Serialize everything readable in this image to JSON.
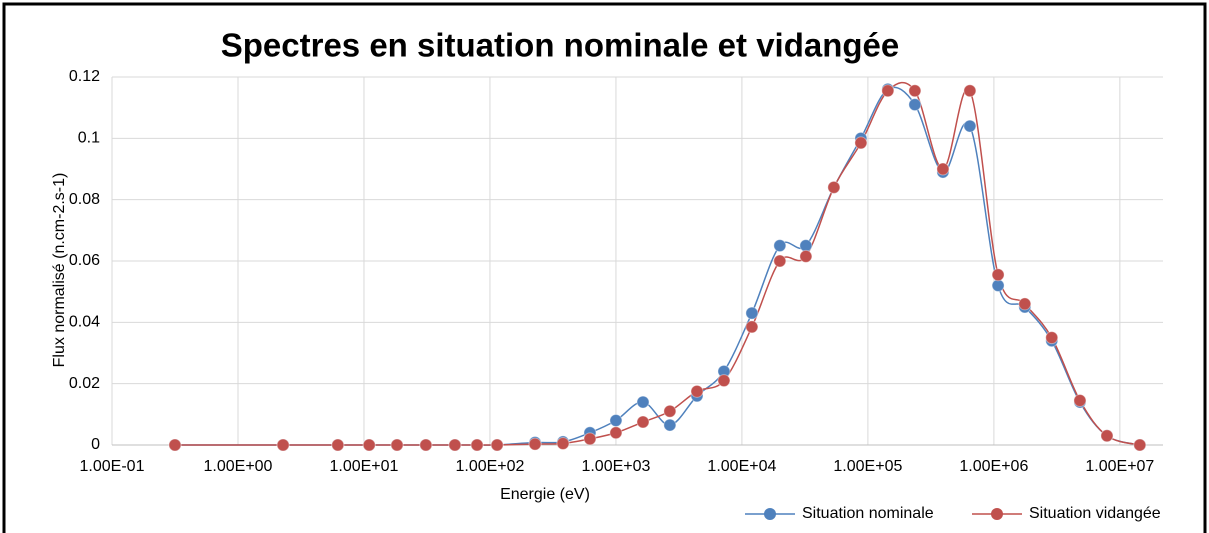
{
  "chart_data": {
    "type": "line",
    "title": "Spectres en situation nominale et vidangée",
    "x_label": "Energie (eV)",
    "y_label": "Flux normalisé (n.cm-2.s-1)",
    "x": [
      0.316,
      2.28,
      6.2,
      11,
      18.3,
      31,
      52.7,
      79,
      114,
      228,
      380,
      622,
      1000,
      1640,
      2680,
      4400,
      7200,
      12000,
      20000,
      32200,
      53700,
      88000,
      144000,
      236000,
      394000,
      645000,
      1080000,
      1760000,
      2880000,
      4820000,
      7900000,
      14400000
    ],
    "series": [
      {
        "name": "Situation nominale",
        "color": "#4f81bd",
        "values": [
          0,
          0,
          0,
          0,
          0,
          0,
          0,
          0,
          0,
          0.0008,
          0.001,
          0.004,
          0.008,
          0.014,
          0.0065,
          0.016,
          0.024,
          0.043,
          0.065,
          0.065,
          0.084,
          0.1,
          0.116,
          0.111,
          0.089,
          0.104,
          0.052,
          0.045,
          0.034,
          0.014,
          0.003,
          0
        ]
      },
      {
        "name": "Situation vidangée",
        "color": "#c0504d",
        "values": [
          0,
          0,
          0,
          0,
          0,
          0,
          0,
          0,
          0,
          0.0003,
          0.0005,
          0.002,
          0.004,
          0.0075,
          0.011,
          0.0175,
          0.021,
          0.0385,
          0.06,
          0.0615,
          0.084,
          0.0985,
          0.1155,
          0.1155,
          0.09,
          0.1155,
          0.0555,
          0.046,
          0.035,
          0.0145,
          0.003,
          0
        ]
      }
    ],
    "x_log": true,
    "xlim": [
      0.1,
      22000000
    ],
    "xticks": [
      {
        "value": 0.1,
        "label": "1.00E-01"
      },
      {
        "value": 1,
        "label": "1.00E+00"
      },
      {
        "value": 10,
        "label": "1.00E+01"
      },
      {
        "value": 100,
        "label": "1.00E+02"
      },
      {
        "value": 1000,
        "label": "1.00E+03"
      },
      {
        "value": 10000,
        "label": "1.00E+04"
      },
      {
        "value": 100000,
        "label": "1.00E+05"
      },
      {
        "value": 1000000,
        "label": "1.00E+06"
      },
      {
        "value": 10000000,
        "label": "1.00E+07"
      }
    ],
    "ylim": [
      0,
      0.12
    ],
    "yticks": [
      0,
      0.02,
      0.04,
      0.06,
      0.08,
      0.1,
      0.12
    ],
    "grid": true,
    "legend": "bottom-right"
  }
}
